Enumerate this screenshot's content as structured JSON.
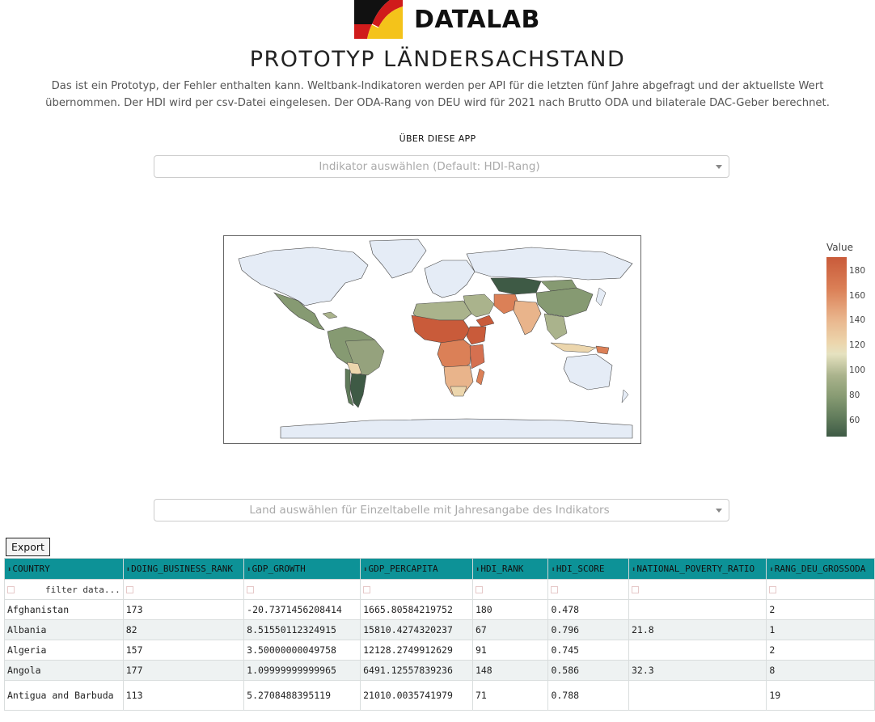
{
  "header": {
    "brand": "DATALAB",
    "title": "PROTOTYP LÄNDERSACHSTAND",
    "description": "Das ist ein Prototyp, der Fehler enthalten kann. Weltbank-Indikatoren werden per API für die letzten fünf Jahre abgefragt und der aktuellste Wert übernommen. Der HDI wird per csv-Datei eingelesen. Der ODA-Rang von DEU wird für 2021 nach Brutto ODA und bilaterale DAC-Geber berechnet.",
    "about_link": "ÜBER DIESE APP"
  },
  "indicator_dropdown": {
    "placeholder": "Indikator auswählen (Default: HDI-Rang)"
  },
  "country_dropdown": {
    "placeholder": "Land auswählen für Einzeltabelle mit Jahresangabe des Indikators"
  },
  "map": {
    "colorbar_title": "Value",
    "colorbar_ticks": [
      "180",
      "160",
      "140",
      "120",
      "100",
      "80",
      "60"
    ],
    "colors": {
      "low": "#3e5a45",
      "mid": "#ecd6ad",
      "high": "#c95b3a",
      "nodata": "#e5ecf6"
    }
  },
  "export_label": "Export",
  "table": {
    "columns": [
      "COUNTRY",
      "DOING_BUSINESS_RANK",
      "GDP_GROWTH",
      "GDP_PERCAPITA",
      "HDI_RANK",
      "HDI_SCORE",
      "NATIONAL_POVERTY_RATIO",
      "RANG_DEU_GROSSODA"
    ],
    "filter_placeholder": "filter data...",
    "rows": [
      [
        "Afghanistan",
        "173",
        "-20.7371456208414",
        "1665.80584219752",
        "180",
        "0.478",
        "",
        "2"
      ],
      [
        "Albania",
        "82",
        "8.51550112324915",
        "15810.4274320237",
        "67",
        "0.796",
        "21.8",
        "1"
      ],
      [
        "Algeria",
        "157",
        "3.50000000049758",
        "12128.2749912629",
        "91",
        "0.745",
        "",
        "2"
      ],
      [
        "Angola",
        "177",
        "1.09999999999965",
        "6491.12557839236",
        "148",
        "0.586",
        "32.3",
        "8"
      ],
      [
        "Antigua and Barbuda",
        "113",
        "5.2708488395119",
        "21010.0035741979",
        "71",
        "0.788",
        "",
        "19"
      ]
    ]
  }
}
